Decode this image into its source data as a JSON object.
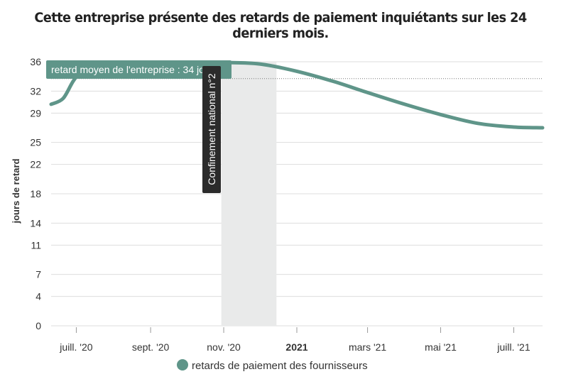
{
  "title": "Cette entreprise présente des retards de paiement inquiétants sur les 24 derniers mois.",
  "colors": {
    "series": "#5f9589",
    "band": "#e9eaea",
    "grid": "#dddddd",
    "badge_dark": "#2b2b2b"
  },
  "chart_data": {
    "type": "line",
    "ylabel": "jours de retard",
    "y_ticks": [
      0,
      4,
      7,
      11,
      14,
      18,
      22,
      25,
      29,
      32,
      36
    ],
    "ylim": [
      0,
      36
    ],
    "xlim": [
      "2020-06-10",
      "2021-07-25"
    ],
    "x_ticks": [
      {
        "date": "2020-07-01",
        "label": "juill. '20",
        "bold": false
      },
      {
        "date": "2020-09-01",
        "label": "sept. '20",
        "bold": false
      },
      {
        "date": "2020-11-01",
        "label": "nov. '20",
        "bold": false
      },
      {
        "date": "2021-01-01",
        "label": "2021",
        "bold": true
      },
      {
        "date": "2021-03-01",
        "label": "mars '21",
        "bold": false
      },
      {
        "date": "2021-05-01",
        "label": "mai '21",
        "bold": false
      },
      {
        "date": "2021-07-01",
        "label": "juill. '21",
        "bold": false
      }
    ],
    "series": [
      {
        "name": "retards de paiement des fournisseurs",
        "points": [
          {
            "x": "2020-06-10",
            "y": 30.2
          },
          {
            "x": "2020-06-20",
            "y": 31.0
          },
          {
            "x": "2020-06-29",
            "y": 33.5
          },
          {
            "x": "2020-07-10",
            "y": 35.6
          },
          {
            "x": "2020-08-01",
            "y": 35.9
          },
          {
            "x": "2020-09-01",
            "y": 35.9
          },
          {
            "x": "2020-10-01",
            "y": 35.9
          },
          {
            "x": "2020-11-01",
            "y": 35.9
          },
          {
            "x": "2020-12-01",
            "y": 35.7
          },
          {
            "x": "2021-01-01",
            "y": 34.7
          },
          {
            "x": "2021-02-01",
            "y": 33.3
          },
          {
            "x": "2021-03-01",
            "y": 31.8
          },
          {
            "x": "2021-04-01",
            "y": 30.2
          },
          {
            "x": "2021-05-01",
            "y": 28.8
          },
          {
            "x": "2021-06-01",
            "y": 27.6
          },
          {
            "x": "2021-07-01",
            "y": 27.1
          },
          {
            "x": "2021-07-25",
            "y": 27.0
          }
        ]
      }
    ],
    "reference_line": {
      "label": "retard moyen de l'entreprise : 34 jours",
      "y": 33.7
    },
    "band": {
      "label": "Confinement national n°2",
      "from": "2020-10-30",
      "to": "2020-12-15"
    },
    "legend": {
      "position": "bottom-center"
    }
  }
}
